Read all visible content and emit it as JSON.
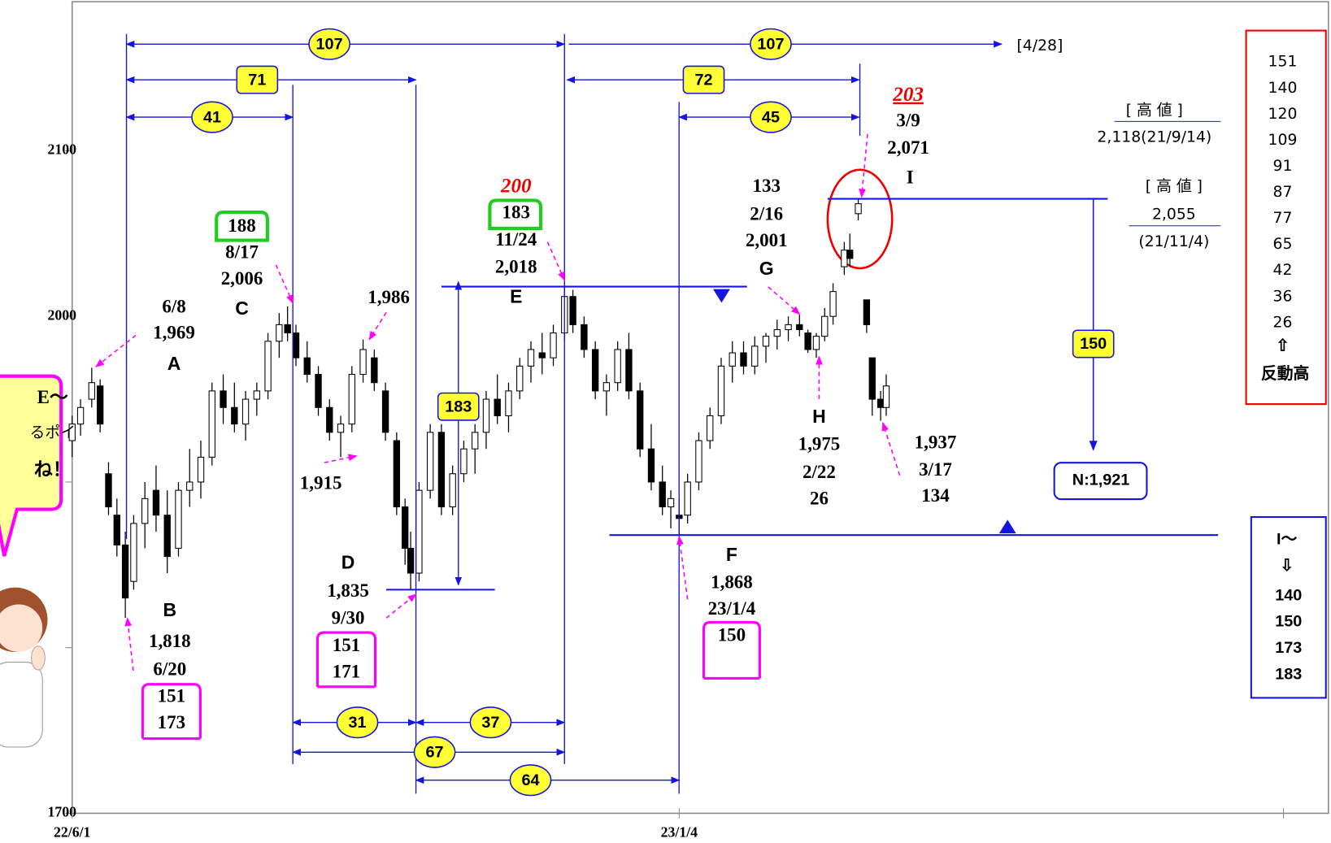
{
  "chart_data": {
    "type": "candlestick",
    "x": [
      0,
      3,
      7,
      10,
      13,
      16,
      19,
      22,
      26,
      30,
      34,
      38,
      42,
      46,
      50,
      54,
      58,
      62,
      66,
      70,
      74,
      77,
      80,
      84,
      88,
      92,
      96,
      100,
      104,
      108,
      112,
      116,
      119,
      121,
      124,
      128,
      132,
      136,
      140,
      144,
      148,
      152,
      156,
      160,
      164,
      168,
      172,
      176,
      179,
      183,
      187,
      191,
      195,
      199,
      203,
      207,
      211,
      214,
      217,
      220,
      224,
      228,
      232,
      236,
      240,
      244,
      248,
      252,
      256,
      260,
      263,
      266,
      269,
      272,
      276,
      278,
      281,
      284,
      286,
      289,
      291
    ],
    "open": [
      1925,
      1935,
      1950,
      1958,
      1905,
      1880,
      1862,
      1840,
      1875,
      1895,
      1880,
      1860,
      1895,
      1900,
      1915,
      1955,
      1945,
      1935,
      1950,
      1955,
      1985,
      1995,
      1990,
      1975,
      1965,
      1945,
      1930,
      1935,
      1965,
      1975,
      1955,
      1925,
      1885,
      1860,
      1845,
      1895,
      1930,
      1885,
      1905,
      1920,
      1930,
      1950,
      1940,
      1955,
      1970,
      1978,
      1975,
      1990,
      2012,
      1995,
      1980,
      1955,
      1960,
      1980,
      1955,
      1920,
      1900,
      1885,
      1880,
      1880,
      1900,
      1925,
      1940,
      1970,
      1978,
      1970,
      1982,
      1988,
      1992,
      1995,
      1990,
      1980,
      1988,
      2000,
      2030,
      2040,
      2062,
      2010,
      1975,
      1950,
      1945
    ],
    "high": [
      1940,
      1950,
      1969,
      1962,
      1912,
      1890,
      1870,
      1880,
      1900,
      1910,
      1895,
      1900,
      1920,
      1925,
      1960,
      1965,
      1960,
      1955,
      1960,
      1990,
      2002,
      2006,
      1995,
      1985,
      1970,
      1950,
      1940,
      1970,
      1986,
      1980,
      1960,
      1930,
      1890,
      1870,
      1900,
      1935,
      1935,
      1910,
      1925,
      1935,
      1955,
      1965,
      1960,
      1975,
      1985,
      1990,
      1995,
      2018,
      2016,
      2000,
      1985,
      1965,
      1985,
      1990,
      1960,
      1935,
      1910,
      1895,
      1890,
      1905,
      1930,
      1945,
      1975,
      1985,
      1985,
      1988,
      1990,
      1998,
      2000,
      2001,
      1992,
      1990,
      2005,
      2020,
      2045,
      2050,
      2071,
      2010,
      1975,
      1955,
      1965
    ],
    "low": [
      1915,
      1928,
      1945,
      1930,
      1880,
      1855,
      1818,
      1835,
      1860,
      1870,
      1845,
      1855,
      1885,
      1890,
      1910,
      1935,
      1930,
      1925,
      1940,
      1950,
      1975,
      1985,
      1970,
      1960,
      1940,
      1925,
      1915,
      1930,
      1960,
      1955,
      1925,
      1880,
      1850,
      1835,
      1840,
      1890,
      1880,
      1880,
      1900,
      1905,
      1920,
      1935,
      1930,
      1950,
      1960,
      1965,
      1970,
      1985,
      1990,
      1975,
      1950,
      1940,
      1955,
      1950,
      1915,
      1895,
      1880,
      1872,
      1868,
      1875,
      1895,
      1920,
      1935,
      1960,
      1965,
      1965,
      1972,
      1980,
      1985,
      1988,
      1978,
      1975,
      1985,
      1995,
      2025,
      2030,
      2058,
      1990,
      1940,
      1937,
      1940
    ],
    "close": [
      1935,
      1945,
      1960,
      1935,
      1885,
      1862,
      1830,
      1875,
      1890,
      1880,
      1855,
      1895,
      1900,
      1915,
      1955,
      1945,
      1935,
      1950,
      1955,
      1985,
      1995,
      1990,
      1975,
      1965,
      1945,
      1930,
      1935,
      1965,
      1980,
      1960,
      1930,
      1885,
      1860,
      1845,
      1895,
      1930,
      1885,
      1905,
      1920,
      1930,
      1950,
      1940,
      1955,
      1970,
      1980,
      1975,
      1990,
      2012,
      1995,
      1980,
      1955,
      1960,
      1980,
      1955,
      1920,
      1900,
      1885,
      1890,
      1878,
      1900,
      1925,
      1940,
      1970,
      1978,
      1970,
      1982,
      1988,
      1992,
      1995,
      1992,
      1980,
      1988,
      2000,
      2015,
      2040,
      2035,
      2068,
      1995,
      1950,
      1945,
      1958
    ],
    "xlim": [
      0,
      433
    ],
    "xticks": [
      {
        "value": 0,
        "label": "22/6/1"
      },
      {
        "value": 217,
        "label": "23/1/4"
      }
    ],
    "xminor": [
      433
    ],
    "ylim": [
      1700,
      2190
    ],
    "yticks": [
      1700,
      2000,
      2100
    ],
    "yminor": [
      1800,
      1900
    ],
    "levels": [
      2018,
      1868,
      1835,
      2071
    ],
    "spans": [
      107,
      107,
      71,
      72,
      41,
      45,
      31,
      37,
      67,
      64,
      183,
      150
    ],
    "notes": [
      "6/8",
      "1,969",
      "A",
      "B",
      "1,818",
      "6/20",
      "151",
      "173",
      "188",
      "8/17",
      "2,006",
      "C",
      "1,986",
      "1,915",
      "D",
      "1,835",
      "9/30",
      "151",
      "171",
      "200",
      "183",
      "11/24",
      "2,018",
      "E",
      "F",
      "1,868",
      "23/1/4",
      "150",
      "133",
      "2/16",
      "2,001",
      "G",
      "H",
      "1,975",
      "2/22",
      "26",
      "203",
      "3/9",
      "2,071",
      "I",
      "1,937",
      "3/17",
      "134",
      "[4/28]",
      "[ 高 値 ]",
      "2,118(21/9/14)",
      "[ 高 値 ]",
      "2,055",
      "(21/11/4)",
      "N:1,921",
      "E～",
      "るポイ",
      "ね！"
    ],
    "reaction_box": {
      "values": [
        151,
        140,
        120,
        109,
        91,
        87,
        77,
        65,
        42,
        36,
        26
      ],
      "arrow": "⇧",
      "label": "反動高"
    },
    "target_box": {
      "title": "I～",
      "arrow": "⇩",
      "values": [
        140,
        150,
        173,
        183
      ]
    }
  }
}
